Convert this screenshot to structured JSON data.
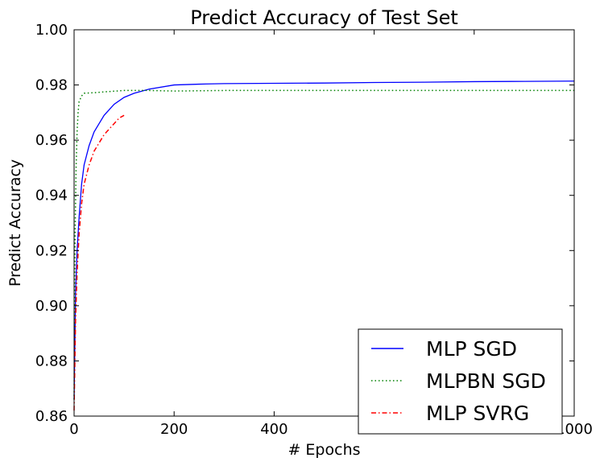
{
  "chart_data": {
    "type": "line",
    "title": "Predict Accuracy of Test Set",
    "xlabel": "# Epochs",
    "ylabel": "Predict Accuracy",
    "xlim": [
      0,
      1000
    ],
    "ylim": [
      0.86,
      1.0
    ],
    "xticks": [
      0,
      200,
      400,
      600,
      800,
      1000
    ],
    "xtick_labels": [
      "0",
      "200",
      "400",
      "600",
      "800",
      "1000"
    ],
    "yticks": [
      0.86,
      0.88,
      0.9,
      0.92,
      0.94,
      0.96,
      0.98,
      1.0
    ],
    "ytick_labels": [
      "0.86",
      "0.88",
      "0.90",
      "0.92",
      "0.94",
      "0.96",
      "0.98",
      "1.00"
    ],
    "grid": false,
    "legend_position": "bottom-right",
    "series": [
      {
        "name": "MLP SGD",
        "color": "#0000ff",
        "style": "solid",
        "x": [
          0,
          3,
          6,
          10,
          15,
          20,
          30,
          40,
          50,
          60,
          80,
          100,
          120,
          150,
          200,
          250,
          300,
          400,
          500,
          600,
          700,
          800,
          900,
          1000
        ],
        "y": [
          0.866,
          0.905,
          0.92,
          0.932,
          0.944,
          0.951,
          0.958,
          0.963,
          0.966,
          0.969,
          0.973,
          0.9755,
          0.977,
          0.9785,
          0.98,
          0.9803,
          0.9805,
          0.9806,
          0.9807,
          0.9809,
          0.981,
          0.9812,
          0.9813,
          0.9814
        ]
      },
      {
        "name": "MLPBN SGD",
        "color": "#008000",
        "style": "dotted",
        "x": [
          0,
          2,
          4,
          6,
          8,
          10,
          15,
          20,
          40,
          60,
          100,
          150,
          200,
          300,
          400,
          500,
          600,
          700,
          800,
          900,
          1000
        ],
        "y": [
          0.866,
          0.925,
          0.95,
          0.963,
          0.97,
          0.974,
          0.976,
          0.977,
          0.9772,
          0.9775,
          0.978,
          0.978,
          0.9778,
          0.978,
          0.978,
          0.978,
          0.978,
          0.978,
          0.978,
          0.978,
          0.978
        ]
      },
      {
        "name": "MLP SVRG",
        "color": "#ff0000",
        "style": "dashdot",
        "x": [
          0,
          3,
          6,
          10,
          15,
          20,
          30,
          40,
          50,
          60,
          70,
          80,
          90,
          100
        ],
        "y": [
          0.862,
          0.895,
          0.912,
          0.926,
          0.937,
          0.944,
          0.951,
          0.956,
          0.959,
          0.962,
          0.964,
          0.966,
          0.968,
          0.969
        ]
      }
    ]
  }
}
